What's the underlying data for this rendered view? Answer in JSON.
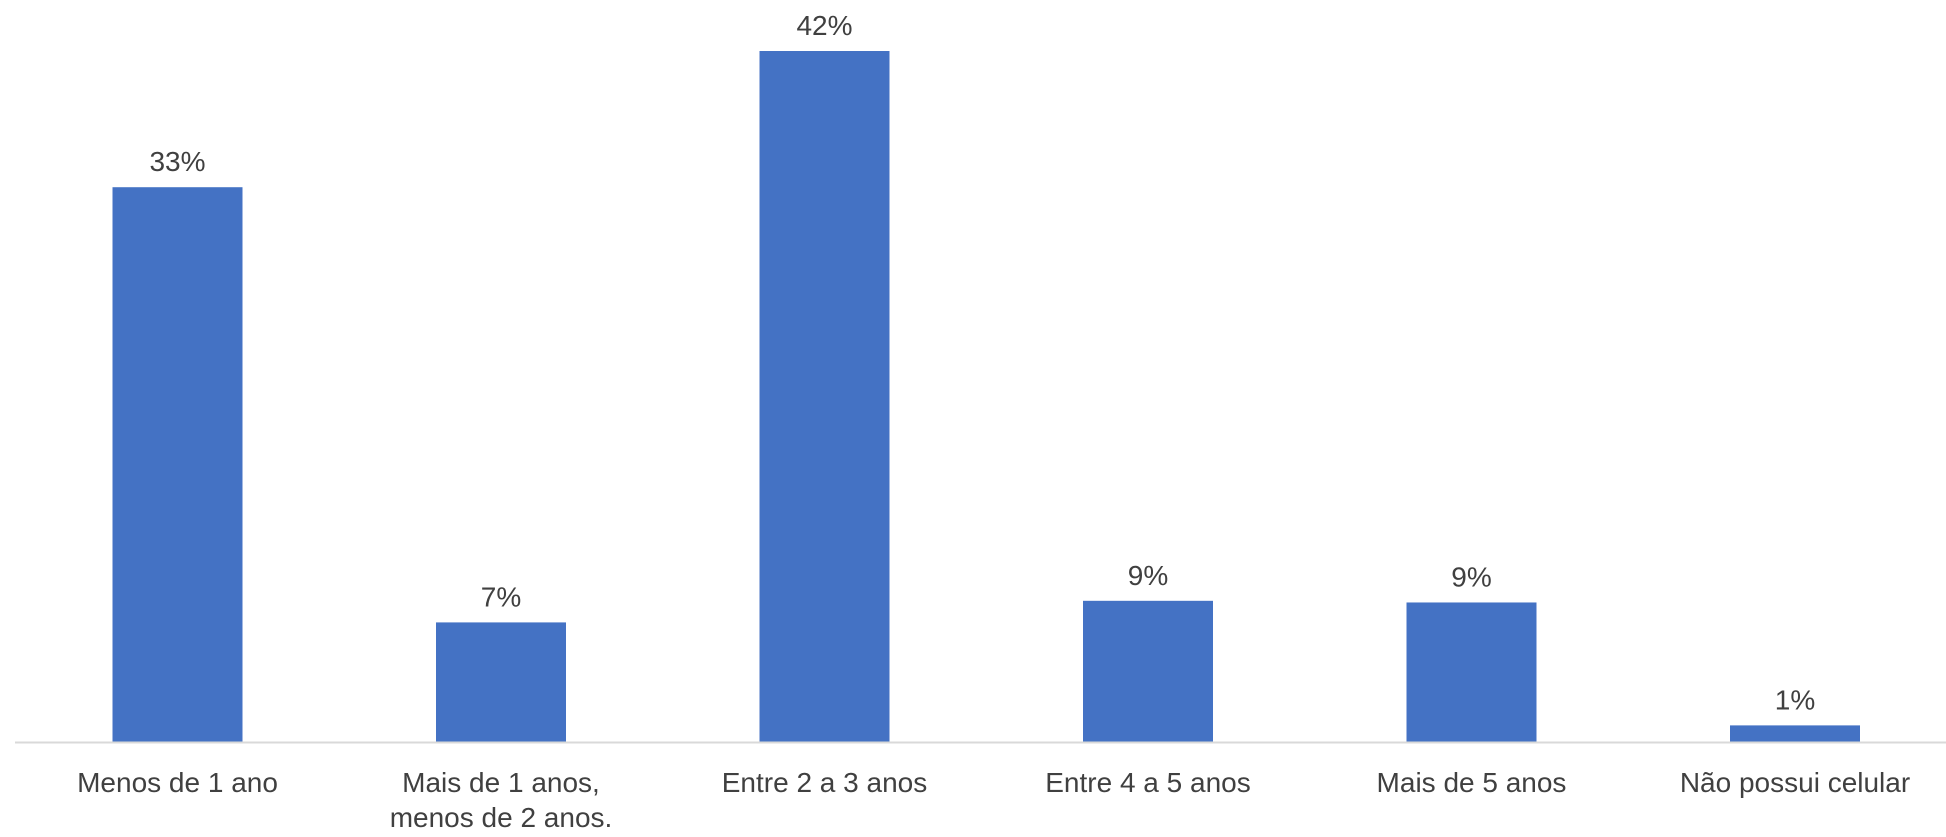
{
  "chart_data": {
    "type": "bar",
    "title": "",
    "xlabel": "",
    "ylabel": "",
    "categories": [
      [
        "Menos de 1 ano"
      ],
      [
        "Mais de 1 anos,",
        "menos de 2 anos."
      ],
      [
        "Entre 2 a 3 anos"
      ],
      [
        "Entre 4 a 5 anos"
      ],
      [
        "Mais de 5 anos"
      ],
      [
        "Não possui celular"
      ]
    ],
    "values": [
      33,
      7,
      42,
      9,
      9,
      1
    ],
    "raw_values": [
      33.4,
      7.2,
      41.6,
      8.5,
      8.4,
      1.0
    ],
    "value_labels": [
      "33%",
      "7%",
      "42%",
      "9%",
      "9%",
      "1%"
    ],
    "ylim": [
      0,
      41.6
    ],
    "grid": false,
    "legend": "none",
    "bar_color": "#4472C4",
    "label_color": "#404040",
    "axis_color": "#D9D9D9"
  }
}
